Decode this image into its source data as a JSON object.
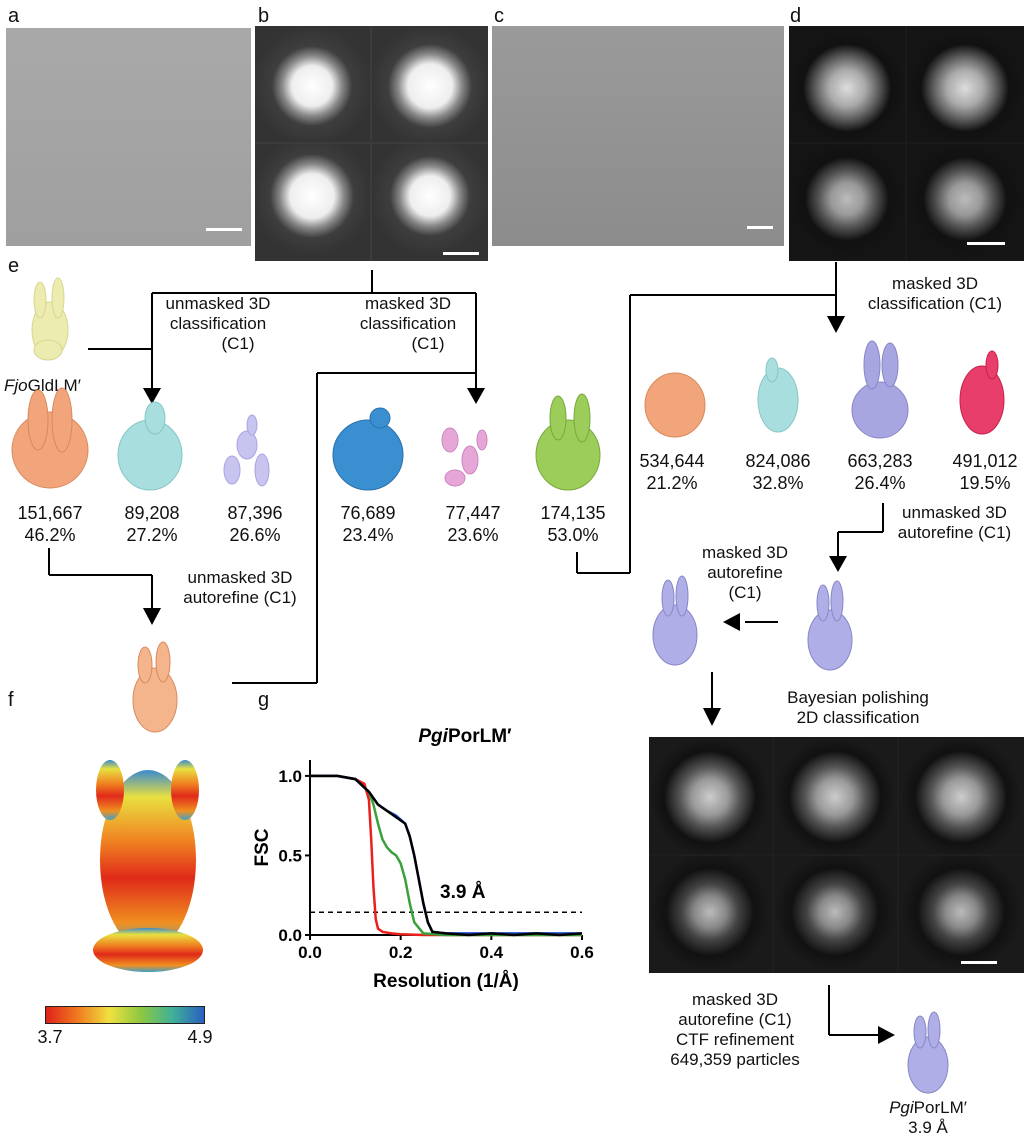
{
  "panel_labels": {
    "a": "a",
    "b": "b",
    "c": "c",
    "d": "d",
    "e": "e",
    "f": "f",
    "g": "g"
  },
  "labels": {
    "unmasked_3d_class": [
      "unmasked 3D",
      "classification",
      "(C1)"
    ],
    "masked_3d_class_left": [
      "masked 3D",
      "classification",
      "(C1)"
    ],
    "masked_3d_class_right": [
      "masked 3D",
      "classification (C1)"
    ],
    "unmasked_autorefine_left": [
      "unmasked 3D",
      "autorefine (C1)"
    ],
    "unmasked_autorefine_right": [
      "unmasked 3D",
      "autorefine (C1)"
    ],
    "masked_autorefine_mid": [
      "masked 3D",
      "autorefine",
      "(C1)"
    ],
    "bayesian": [
      "Bayesian polishing",
      "2D classification"
    ],
    "final_steps": [
      "masked 3D",
      "autorefine (C1)",
      "CTF refinement",
      "649,359 particles"
    ],
    "fjo_italic": "Fjo",
    "fjo_rest": "GldLM′",
    "pgi_italic": "Pgi",
    "pgi_rest": "PorLM′",
    "final_resolution": "3.9 Å"
  },
  "classes_left": [
    {
      "count": "151,667",
      "pct": "46.2%",
      "color": "#f2a47a"
    },
    {
      "count": "89,208",
      "pct": "27.2%",
      "color": "#a8dede"
    },
    {
      "count": "87,396",
      "pct": "26.6%",
      "color": "#b8b4e6"
    },
    {
      "count": "76,689",
      "pct": "23.4%",
      "color": "#3a8fd0"
    },
    {
      "count": "77,447",
      "pct": "23.6%",
      "color": "#e6a6d8"
    },
    {
      "count": "174,135",
      "pct": "53.0%",
      "color": "#9ccc5a"
    }
  ],
  "classes_right": [
    {
      "count": "534,644",
      "pct": "21.2%",
      "color": "#f2a47a"
    },
    {
      "count": "824,086",
      "pct": "32.8%",
      "color": "#a8dede"
    },
    {
      "count": "663,283",
      "pct": "26.4%",
      "color": "#a8a6e0"
    },
    {
      "count": "491,012",
      "pct": "19.5%",
      "color": "#e83e6c"
    }
  ],
  "colorbar": {
    "min": "3.7",
    "max": "4.9"
  },
  "chart_data": {
    "type": "line",
    "title_italic": "Pgi",
    "title_rest": "PorLM′",
    "xlabel": "Resolution (1/Å)",
    "ylabel": "FSC",
    "xlim": [
      0,
      0.6
    ],
    "ylim": [
      0,
      1.1
    ],
    "xticks": [
      "0.0",
      "0.2",
      "0.4",
      "0.6"
    ],
    "yticks": [
      "0.0",
      "0.5",
      "1.0"
    ],
    "threshold": 0.143,
    "annotation": "3.9 Å",
    "series": [
      {
        "color": "#e8211d",
        "x": [
          0,
          0.06,
          0.1,
          0.12,
          0.13,
          0.135,
          0.14,
          0.145,
          0.15,
          0.16,
          0.18,
          0.2,
          0.25,
          0.3,
          0.4,
          0.5,
          0.6
        ],
        "y": [
          1,
          1,
          0.98,
          0.95,
          0.85,
          0.6,
          0.3,
          0.1,
          0.04,
          0.02,
          0.01,
          0.005,
          0,
          0,
          0,
          0,
          0
        ]
      },
      {
        "color": "#3aa13a",
        "x": [
          0,
          0.06,
          0.1,
          0.13,
          0.14,
          0.15,
          0.16,
          0.17,
          0.18,
          0.19,
          0.2,
          0.21,
          0.22,
          0.23,
          0.25,
          0.3,
          0.4,
          0.5,
          0.6
        ],
        "y": [
          1,
          1,
          0.98,
          0.9,
          0.82,
          0.7,
          0.6,
          0.55,
          0.52,
          0.5,
          0.45,
          0.35,
          0.2,
          0.08,
          0.01,
          0,
          0,
          0,
          0
        ]
      },
      {
        "color": "#2a4fd6",
        "x": [
          0,
          0.06,
          0.1,
          0.13,
          0.15,
          0.17,
          0.19,
          0.21,
          0.22,
          0.23,
          0.24,
          0.25,
          0.26,
          0.27,
          0.3,
          0.4,
          0.5,
          0.6
        ],
        "y": [
          1,
          1,
          0.98,
          0.9,
          0.82,
          0.78,
          0.75,
          0.7,
          0.62,
          0.5,
          0.35,
          0.2,
          0.08,
          0.02,
          0.01,
          0.01,
          0.01,
          0.01
        ]
      },
      {
        "color": "#000000",
        "x": [
          0,
          0.06,
          0.1,
          0.13,
          0.15,
          0.17,
          0.19,
          0.21,
          0.22,
          0.23,
          0.24,
          0.25,
          0.26,
          0.27,
          0.3,
          0.35,
          0.4,
          0.45,
          0.5,
          0.55,
          0.6
        ],
        "y": [
          1,
          1,
          0.98,
          0.9,
          0.82,
          0.78,
          0.74,
          0.7,
          0.62,
          0.5,
          0.35,
          0.2,
          0.08,
          0.02,
          0.01,
          0,
          0.01,
          0,
          0.01,
          0,
          0.01
        ]
      }
    ]
  }
}
